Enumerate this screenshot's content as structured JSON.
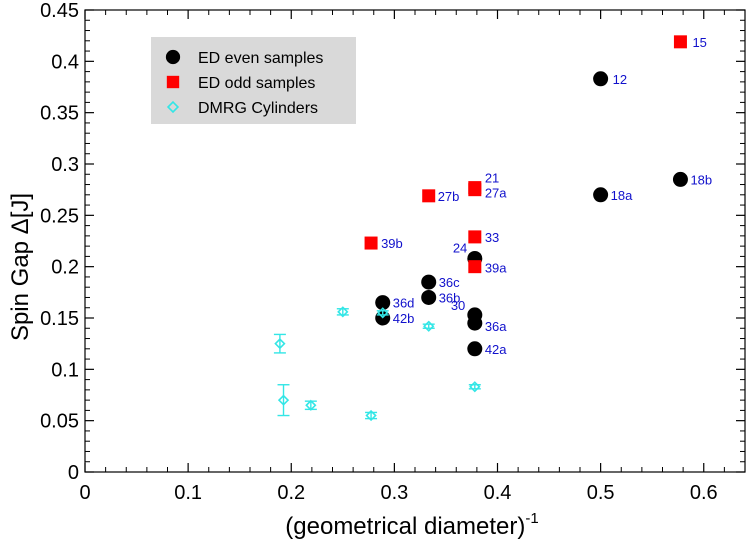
{
  "chart_data": {
    "type": "scatter",
    "xlabel": "(geometrical diameter)",
    "xlabel_sup": "-1",
    "ylabel": "Spin Gap Δ[J]",
    "xlim": [
      0,
      0.64
    ],
    "ylim": [
      0,
      0.45
    ],
    "xticks": [
      "0",
      "0.1",
      "0.2",
      "0.3",
      "0.4",
      "0.5",
      "0.6"
    ],
    "yticks": [
      "0",
      "0.05",
      "0.1",
      "0.15",
      "0.2",
      "0.25",
      "0.3",
      "0.35",
      "0.4",
      "0.45"
    ],
    "legend_position": "top-left",
    "colors": {
      "even": "#000000",
      "odd": "#ff0000",
      "dmrg": "#33e6e6",
      "label": "#1111cc",
      "legend_bg": "#d9d9d9"
    },
    "series": [
      {
        "name": "ED even samples",
        "marker": "circle",
        "points": [
          {
            "x": 0.2887,
            "y": 0.165,
            "label": "36d"
          },
          {
            "x": 0.2887,
            "y": 0.15,
            "label": "42b"
          },
          {
            "x": 0.3333,
            "y": 0.185,
            "label": "36c"
          },
          {
            "x": 0.3333,
            "y": 0.17,
            "label": "36b"
          },
          {
            "x": 0.378,
            "y": 0.208,
            "label": "24"
          },
          {
            "x": 0.378,
            "y": 0.153,
            "label": "30"
          },
          {
            "x": 0.378,
            "y": 0.145,
            "label": "36a"
          },
          {
            "x": 0.378,
            "y": 0.12,
            "label": "42a"
          },
          {
            "x": 0.5,
            "y": 0.383,
            "label": "12"
          },
          {
            "x": 0.5,
            "y": 0.27,
            "label": "18a"
          },
          {
            "x": 0.5774,
            "y": 0.285,
            "label": "18b"
          }
        ]
      },
      {
        "name": "ED odd samples",
        "marker": "square",
        "points": [
          {
            "x": 0.2774,
            "y": 0.223,
            "label": "39b"
          },
          {
            "x": 0.3333,
            "y": 0.269,
            "label": "27b"
          },
          {
            "x": 0.378,
            "y": 0.277,
            "label": "21"
          },
          {
            "x": 0.378,
            "y": 0.275,
            "label": "27a"
          },
          {
            "x": 0.378,
            "y": 0.229,
            "label": "33"
          },
          {
            "x": 0.378,
            "y": 0.2,
            "label": "39a"
          },
          {
            "x": 0.5774,
            "y": 0.419,
            "label": "15"
          }
        ]
      },
      {
        "name": "DMRG Cylinders",
        "marker": "diamond",
        "points": [
          {
            "x": 0.189,
            "y": 0.125,
            "err": 0.009
          },
          {
            "x": 0.1925,
            "y": 0.07,
            "err": 0.015
          },
          {
            "x": 0.219,
            "y": 0.065,
            "err": 0.004
          },
          {
            "x": 0.25,
            "y": 0.156,
            "err": 0.003
          },
          {
            "x": 0.2774,
            "y": 0.055,
            "err": 0.003
          },
          {
            "x": 0.2887,
            "y": 0.155,
            "err": 0.002
          },
          {
            "x": 0.3333,
            "y": 0.142,
            "err": 0.002
          },
          {
            "x": 0.378,
            "y": 0.083,
            "err": 0.002
          }
        ]
      }
    ]
  }
}
